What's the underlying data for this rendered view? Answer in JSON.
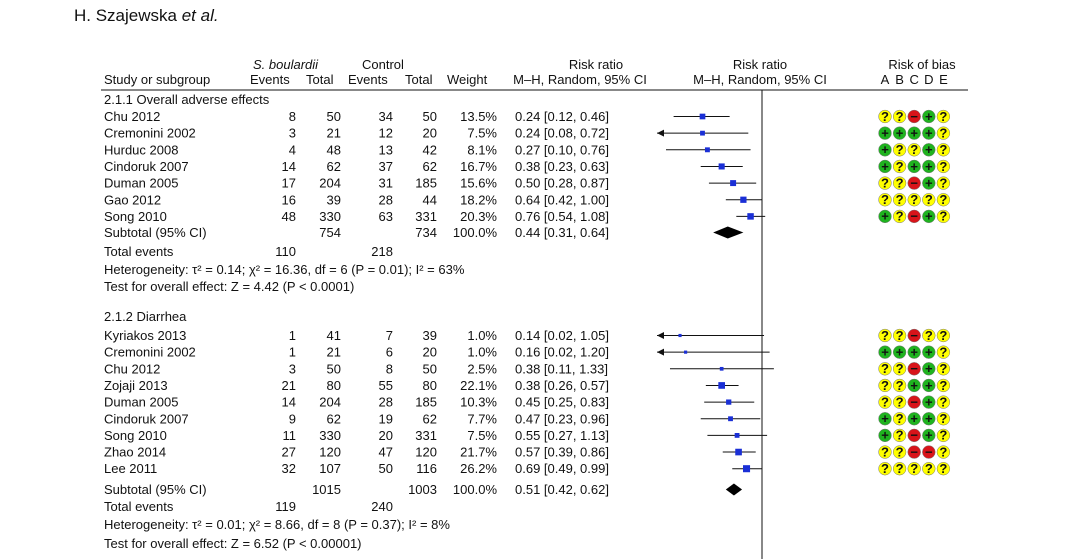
{
  "author": {
    "name": "H. Szajewska",
    "etal": "et al."
  },
  "headers": {
    "study": "Study or subgroup",
    "sb_group": "S. boulardii",
    "control_group": "Control",
    "events": "Events",
    "total": "Total",
    "weight": "Weight",
    "rr_title": "Risk ratio",
    "rr_method": "M–H, Random, 95% CI",
    "plot_title": "Risk ratio",
    "plot_method": "M–H, Random, 95% CI",
    "bias_title": "Risk of bias",
    "bias_letters": [
      "A",
      "B",
      "C",
      "D",
      "E"
    ]
  },
  "chart_data": {
    "type": "forest",
    "x_scale": "log",
    "xlim": [
      0.01,
      100
    ],
    "null_line": 1,
    "subgroups": [
      {
        "title": "2.1.1 Overall adverse effects",
        "studies": [
          {
            "name": "Chu 2012",
            "sb_events": "8",
            "sb_total": "50",
            "c_events": "34",
            "c_total": "50",
            "weight": "13.5%",
            "ci_text": "0.24 [0.12, 0.46]",
            "rr": 0.24,
            "lo": 0.12,
            "hi": 0.46,
            "bias": [
              "q",
              "q",
              "r",
              "g",
              "q"
            ]
          },
          {
            "name": "Cremonini 2002",
            "sb_events": "3",
            "sb_total": "21",
            "c_events": "12",
            "c_total": "20",
            "weight": "7.5%",
            "ci_text": "0.24 [0.08, 0.72]",
            "rr": 0.24,
            "lo": 0.08,
            "hi": 0.72,
            "bias": [
              "g",
              "g",
              "g",
              "g",
              "q"
            ]
          },
          {
            "name": "Hurduc 2008",
            "sb_events": "4",
            "sb_total": "48",
            "c_events": "13",
            "c_total": "42",
            "weight": "8.1%",
            "ci_text": "0.27 [0.10, 0.76]",
            "rr": 0.27,
            "lo": 0.1,
            "hi": 0.76,
            "bias": [
              "g",
              "q",
              "q",
              "g",
              "q"
            ]
          },
          {
            "name": "Cindoruk 2007",
            "sb_events": "14",
            "sb_total": "62",
            "c_events": "37",
            "c_total": "62",
            "weight": "16.7%",
            "ci_text": "0.38 [0.23, 0.63]",
            "rr": 0.38,
            "lo": 0.23,
            "hi": 0.63,
            "bias": [
              "g",
              "q",
              "g",
              "g",
              "q"
            ]
          },
          {
            "name": "Duman 2005",
            "sb_events": "17",
            "sb_total": "204",
            "c_events": "31",
            "c_total": "185",
            "weight": "15.6%",
            "ci_text": "0.50 [0.28, 0.87]",
            "rr": 0.5,
            "lo": 0.28,
            "hi": 0.87,
            "bias": [
              "q",
              "q",
              "r",
              "g",
              "q"
            ]
          },
          {
            "name": "Gao 2012",
            "sb_events": "16",
            "sb_total": "39",
            "c_events": "28",
            "c_total": "44",
            "weight": "18.2%",
            "ci_text": "0.64 [0.42, 1.00]",
            "rr": 0.64,
            "lo": 0.42,
            "hi": 1.0,
            "bias": [
              "q",
              "q",
              "q",
              "q",
              "q"
            ]
          },
          {
            "name": "Song 2010",
            "sb_events": "48",
            "sb_total": "330",
            "c_events": "63",
            "c_total": "331",
            "weight": "20.3%",
            "ci_text": "0.76 [0.54, 1.08]",
            "rr": 0.76,
            "lo": 0.54,
            "hi": 1.08,
            "bias": [
              "g",
              "q",
              "r",
              "g",
              "q"
            ]
          }
        ],
        "subtotal": {
          "label": "Subtotal (95% CI)",
          "sb_total": "754",
          "c_total": "734",
          "weight": "100.0%",
          "ci_text": "0.44 [0.31, 0.64]",
          "rr": 0.44,
          "lo": 0.31,
          "hi": 0.64
        },
        "total_events": {
          "label": "Total events",
          "sb": "110",
          "c": "218"
        },
        "heterogeneity": "Heterogeneity: τ² = 0.14; χ² = 16.36, df = 6 (P = 0.01); I² = 63%",
        "overall_effect": "Test for overall effect: Z = 4.42 (P < 0.0001)"
      },
      {
        "title": "2.1.2 Diarrhea",
        "studies": [
          {
            "name": "Kyriakos 2013",
            "sb_events": "1",
            "sb_total": "41",
            "c_events": "7",
            "c_total": "39",
            "weight": "1.0%",
            "ci_text": "0.14 [0.02, 1.05]",
            "rr": 0.14,
            "lo": 0.02,
            "hi": 1.05,
            "bias": [
              "q",
              "q",
              "r",
              "q",
              "q"
            ]
          },
          {
            "name": "Cremonini 2002",
            "sb_events": "1",
            "sb_total": "21",
            "c_events": "6",
            "c_total": "20",
            "weight": "1.0%",
            "ci_text": "0.16 [0.02, 1.20]",
            "rr": 0.16,
            "lo": 0.02,
            "hi": 1.2,
            "bias": [
              "g",
              "g",
              "g",
              "g",
              "q"
            ]
          },
          {
            "name": "Chu 2012",
            "sb_events": "3",
            "sb_total": "50",
            "c_events": "8",
            "c_total": "50",
            "weight": "2.5%",
            "ci_text": "0.38 [0.11, 1.33]",
            "rr": 0.38,
            "lo": 0.11,
            "hi": 1.33,
            "bias": [
              "q",
              "q",
              "r",
              "g",
              "q"
            ]
          },
          {
            "name": "Zojaji 2013",
            "sb_events": "21",
            "sb_total": "80",
            "c_events": "55",
            "c_total": "80",
            "weight": "22.1%",
            "ci_text": "0.38 [0.26, 0.57]",
            "rr": 0.38,
            "lo": 0.26,
            "hi": 0.57,
            "bias": [
              "q",
              "q",
              "g",
              "g",
              "q"
            ]
          },
          {
            "name": "Duman 2005",
            "sb_events": "14",
            "sb_total": "204",
            "c_events": "28",
            "c_total": "185",
            "weight": "10.3%",
            "ci_text": "0.45 [0.25, 0.83]",
            "rr": 0.45,
            "lo": 0.25,
            "hi": 0.83,
            "bias": [
              "q",
              "q",
              "r",
              "g",
              "q"
            ]
          },
          {
            "name": "Cindoruk 2007",
            "sb_events": "9",
            "sb_total": "62",
            "c_events": "19",
            "c_total": "62",
            "weight": "7.7%",
            "ci_text": "0.47 [0.23, 0.96]",
            "rr": 0.47,
            "lo": 0.23,
            "hi": 0.96,
            "bias": [
              "g",
              "q",
              "g",
              "g",
              "q"
            ]
          },
          {
            "name": "Song 2010",
            "sb_events": "11",
            "sb_total": "330",
            "c_events": "20",
            "c_total": "331",
            "weight": "7.5%",
            "ci_text": "0.55 [0.27, 1.13]",
            "rr": 0.55,
            "lo": 0.27,
            "hi": 1.13,
            "bias": [
              "g",
              "q",
              "r",
              "g",
              "q"
            ]
          },
          {
            "name": "Zhao 2014",
            "sb_events": "27",
            "sb_total": "120",
            "c_events": "47",
            "c_total": "120",
            "weight": "21.7%",
            "ci_text": "0.57 [0.39, 0.86]",
            "rr": 0.57,
            "lo": 0.39,
            "hi": 0.86,
            "bias": [
              "q",
              "q",
              "r",
              "r",
              "q"
            ]
          },
          {
            "name": "Lee 2011",
            "sb_events": "32",
            "sb_total": "107",
            "c_events": "50",
            "c_total": "116",
            "weight": "26.2%",
            "ci_text": "0.69 [0.49, 0.99]",
            "rr": 0.69,
            "lo": 0.49,
            "hi": 0.99,
            "bias": [
              "q",
              "q",
              "q",
              "q",
              "q"
            ]
          }
        ],
        "subtotal": {
          "label": "Subtotal (95% CI)",
          "sb_total": "1015",
          "c_total": "1003",
          "weight": "100.0%",
          "ci_text": "0.51 [0.42, 0.62]",
          "rr": 0.51,
          "lo": 0.42,
          "hi": 0.62
        },
        "total_events": {
          "label": "Total events",
          "sb": "119",
          "c": "240"
        },
        "heterogeneity": "Heterogeneity: τ² = 0.01; χ² = 8.66, df = 8 (P = 0.37); I² = 8%",
        "overall_effect": "Test for overall effect: Z = 6.52 (P < 0.00001)"
      }
    ]
  },
  "bias_symbols": {
    "g": "+",
    "r": "−",
    "q": "?"
  },
  "colors": {
    "bias_green": "#1fb31f",
    "bias_red": "#d8141a",
    "bias_yellow": "#ffff00",
    "marker": "#1a2fd6",
    "line": "#111111"
  }
}
